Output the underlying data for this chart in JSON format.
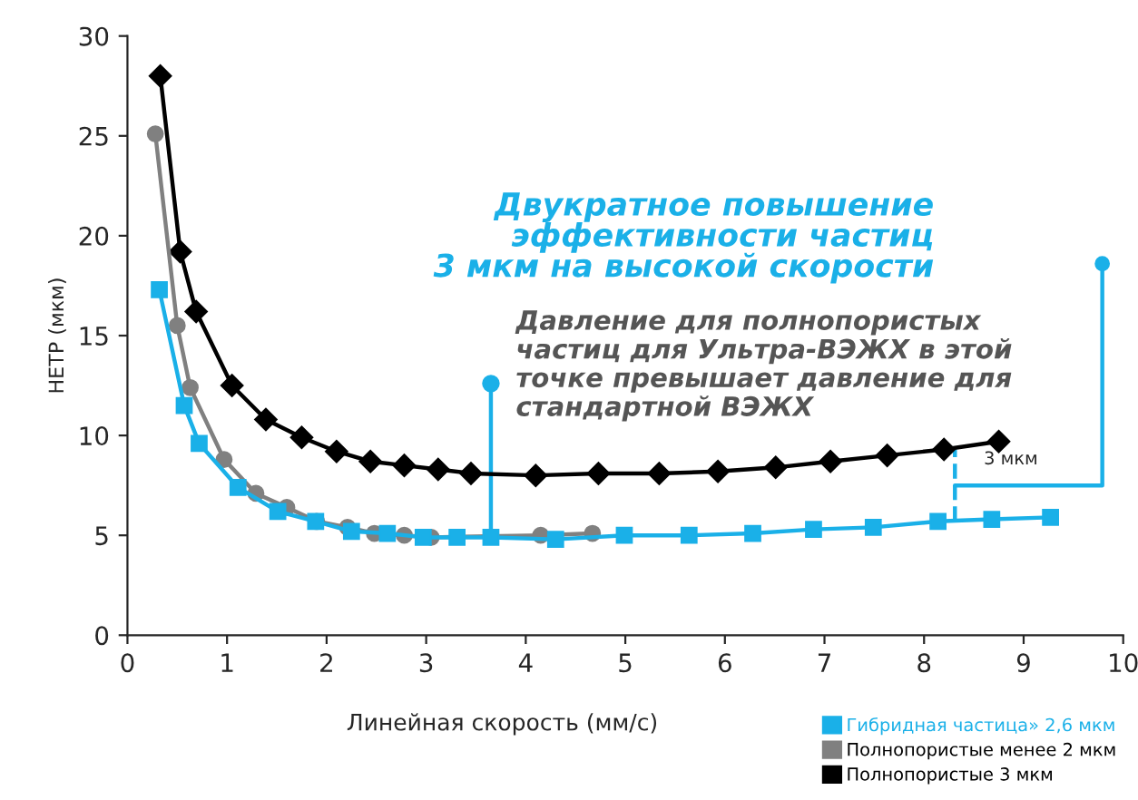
{
  "chart_data": {
    "type": "line",
    "xlabel": "Линейная скорость (мм/с)",
    "ylabel": "HETP (мкм)",
    "xlim": [
      0,
      10
    ],
    "xticks": [
      0,
      1,
      2,
      3,
      4,
      5,
      6,
      7,
      8,
      9,
      10
    ],
    "ylim": [
      0,
      30
    ],
    "yticks": [
      0,
      5,
      10,
      15,
      20,
      25,
      30
    ],
    "grid": false,
    "legend": "bottom right",
    "series": [
      {
        "name": "Гибридная частица» 2,6 мкм",
        "color": "#1ab0e8",
        "marker": "square",
        "x": [
          0.32,
          0.57,
          0.72,
          1.11,
          1.51,
          1.89,
          2.25,
          2.61,
          2.97,
          3.31,
          3.65,
          4.3,
          4.99,
          5.64,
          6.28,
          6.89,
          7.49,
          8.14,
          8.68,
          9.27
        ],
        "values": [
          17.3,
          11.5,
          9.6,
          7.4,
          6.2,
          5.7,
          5.2,
          5.1,
          4.9,
          4.9,
          4.9,
          4.8,
          5.0,
          5.0,
          5.1,
          5.3,
          5.4,
          5.7,
          5.8,
          5.9
        ]
      },
      {
        "name": "Полнопористые менее 2 мкм",
        "color": "#808080",
        "marker": "circle",
        "x": [
          0.28,
          0.5,
          0.63,
          0.97,
          1.29,
          1.6,
          1.9,
          2.21,
          2.48,
          2.78,
          3.05,
          4.15,
          4.67
        ],
        "values": [
          25.1,
          15.5,
          12.4,
          8.8,
          7.1,
          6.4,
          5.7,
          5.4,
          5.1,
          5.0,
          4.9,
          5.0,
          5.1
        ]
      },
      {
        "name": "Полнопористые 3 мкм",
        "color": "#000000",
        "marker": "diamond",
        "x": [
          0.33,
          0.53,
          0.69,
          1.05,
          1.39,
          1.75,
          2.1,
          2.44,
          2.78,
          3.12,
          3.45,
          4.1,
          4.73,
          5.34,
          5.93,
          6.51,
          7.06,
          7.63,
          8.2,
          8.75
        ],
        "values": [
          28.0,
          19.2,
          16.2,
          12.5,
          10.8,
          9.9,
          9.2,
          8.7,
          8.5,
          8.3,
          8.1,
          8.0,
          8.1,
          8.1,
          8.2,
          8.4,
          8.7,
          9.0,
          9.3,
          9.7
        ]
      }
    ],
    "annotations": [
      "Двукратное повышение\nэффективности частиц\n3 мкм на высокой скорости",
      {
        "text": "Давление для полнопористых\nчастиц для Ультра-ВЭЖХ в этой\nточке превышает давление для\nстандартной ВЭЖХ",
        "x": 3.65,
        "y": 4.88
      },
      {
        "text": "3 мкм",
        "x": 8.75,
        "y": 9.7
      }
    ]
  }
}
